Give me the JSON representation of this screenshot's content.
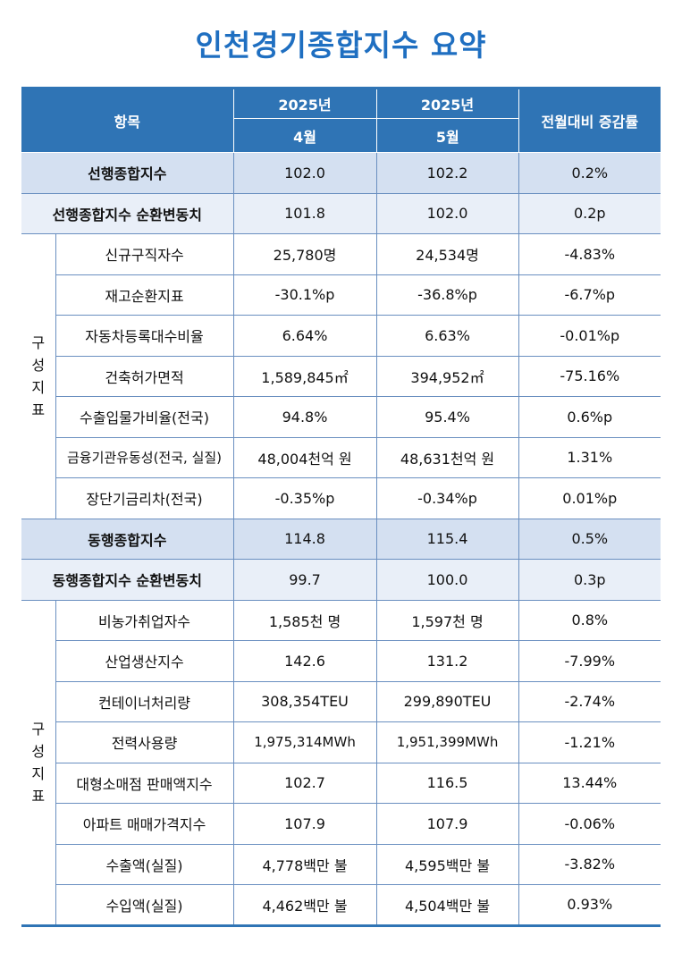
{
  "title": "인천경기종합지수 요약",
  "header": {
    "item": "항목",
    "year1": "2025년",
    "year2": "2025년",
    "month1": "4월",
    "month2": "5월",
    "change": "전월대비 증감률"
  },
  "leading": {
    "summary": {
      "label": "선행종합지수",
      "v1": "102.0",
      "v2": "102.2",
      "chg": "0.2%"
    },
    "cycle": {
      "label": "선행종합지수 순환변동치",
      "v1": "101.8",
      "v2": "102.0",
      "chg": "0.2p"
    },
    "group_label": [
      "구",
      "성",
      "지",
      "표"
    ],
    "components": [
      {
        "label": "신규구직자수",
        "v1": "25,780명",
        "v2": "24,534명",
        "chg": "-4.83%"
      },
      {
        "label": "재고순환지표",
        "v1": "-30.1%p",
        "v2": "-36.8%p",
        "chg": "-6.7%p"
      },
      {
        "label": "자동차등록대수비율",
        "v1": "6.64%",
        "v2": "6.63%",
        "chg": "-0.01%p"
      },
      {
        "label": "건축허가면적",
        "v1": "1,589,845㎡",
        "v2": "394,952㎡",
        "chg": "-75.16%"
      },
      {
        "label": "수출입물가비율(전국)",
        "v1": "94.8%",
        "v2": "95.4%",
        "chg": "0.6%p"
      },
      {
        "label": "금융기관유동성(전국, 실질)",
        "v1": "48,004천억 원",
        "v2": "48,631천억 원",
        "chg": "1.31%"
      },
      {
        "label": "장단기금리차(전국)",
        "v1": "-0.35%p",
        "v2": "-0.34%p",
        "chg": "0.01%p"
      }
    ]
  },
  "coincident": {
    "summary": {
      "label": "동행종합지수",
      "v1": "114.8",
      "v2": "115.4",
      "chg": "0.5%"
    },
    "cycle": {
      "label": "동행종합지수 순환변동치",
      "v1": "99.7",
      "v2": "100.0",
      "chg": "0.3p"
    },
    "group_label": [
      "구",
      "성",
      "지",
      "표"
    ],
    "components": [
      {
        "label": "비농가취업자수",
        "v1": "1,585천 명",
        "v2": "1,597천 명",
        "chg": "0.8%"
      },
      {
        "label": "산업생산지수",
        "v1": "142.6",
        "v2": "131.2",
        "chg": "-7.99%"
      },
      {
        "label": "컨테이너처리량",
        "v1": "308,354TEU",
        "v2": "299,890TEU",
        "chg": "-2.74%"
      },
      {
        "label": "전력사용량",
        "v1": "1,975,314MWh",
        "v2": "1,951,399MWh",
        "chg": "-1.21%"
      },
      {
        "label": "대형소매점 판매액지수",
        "v1": "102.7",
        "v2": "116.5",
        "chg": "13.44%"
      },
      {
        "label": "아파트 매매가격지수",
        "v1": "107.9",
        "v2": "107.9",
        "chg": "-0.06%"
      },
      {
        "label": "수출액(실질)",
        "v1": "4,778백만 불",
        "v2": "4,595백만 불",
        "chg": "-3.82%"
      },
      {
        "label": "수입액(실질)",
        "v1": "4,462백만 불",
        "v2": "4,504백만 불",
        "chg": "0.93%"
      }
    ]
  },
  "colors": {
    "accent": "#1f6fc1",
    "header_bg": "#2f74b5",
    "summary_bg": "#d4e0f1",
    "cycle_bg": "#e9eff8"
  }
}
